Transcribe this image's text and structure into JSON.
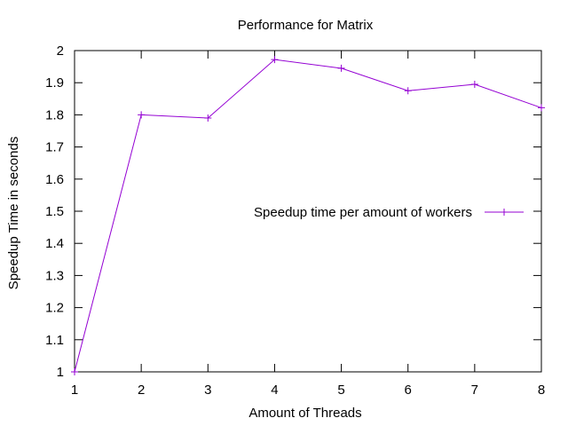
{
  "chart_data": {
    "type": "line",
    "title": "Performance for Matrix",
    "xlabel": "Amount of Threads",
    "ylabel": "Speedup Time in seconds",
    "xlim": [
      1,
      8
    ],
    "ylim": [
      1,
      2
    ],
    "x_ticks": [
      "1",
      "2",
      "3",
      "4",
      "5",
      "6",
      "7",
      "8"
    ],
    "y_ticks": [
      "1",
      "1.1",
      "1.2",
      "1.3",
      "1.4",
      "1.5",
      "1.6",
      "1.7",
      "1.8",
      "1.9",
      "2"
    ],
    "grid": false,
    "legend_position": "right",
    "series": [
      {
        "name": "Speedup time per amount of workers",
        "color": "#9400d3",
        "marker": "plus",
        "x": [
          1,
          2,
          3,
          4,
          5,
          6,
          7,
          8
        ],
        "y": [
          1.0,
          1.8,
          1.79,
          1.972,
          1.945,
          1.875,
          1.895,
          1.822
        ]
      }
    ]
  }
}
